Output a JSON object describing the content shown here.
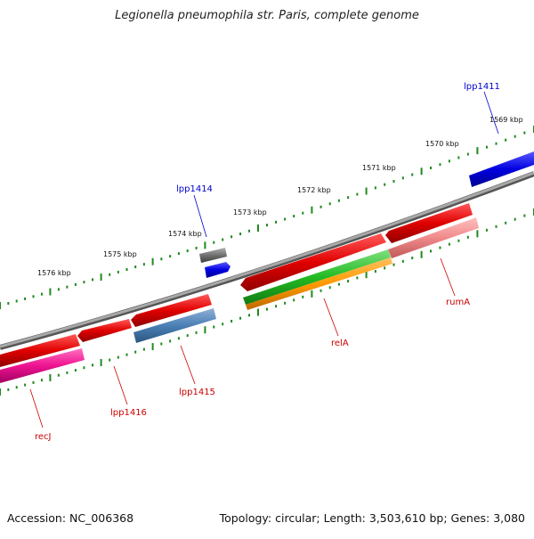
{
  "title": "Legionella pneumophila str. Paris, complete genome",
  "footer": {
    "accession": "Accession: NC_006368",
    "summary": "Topology: circular; Length: 3,503,610 bp; Genes: 3,080"
  },
  "colors": {
    "backbone": "#8a8a8a",
    "tick": "#1e8a1e",
    "label_blue": "#0000cc",
    "label_red": "#cc0000"
  },
  "scale_labels": [
    "1569 kbp",
    "1570 kbp",
    "1571 kbp",
    "1572 kbp",
    "1573 kbp",
    "1574 kbp",
    "1575 kbp",
    "1576 kbp"
  ],
  "gene_labels": [
    {
      "id": "lpp1411",
      "text": "lpp1411",
      "color": "blue"
    },
    {
      "id": "lpp1414",
      "text": "lpp1414",
      "color": "blue"
    },
    {
      "id": "rumA",
      "text": "rumA",
      "color": "red"
    },
    {
      "id": "relA",
      "text": "relA",
      "color": "red"
    },
    {
      "id": "lpp1415",
      "text": "lpp1415",
      "color": "red"
    },
    {
      "id": "lpp1416",
      "text": "lpp1416",
      "color": "red"
    },
    {
      "id": "recJ",
      "text": "recJ",
      "color": "red"
    }
  ]
}
